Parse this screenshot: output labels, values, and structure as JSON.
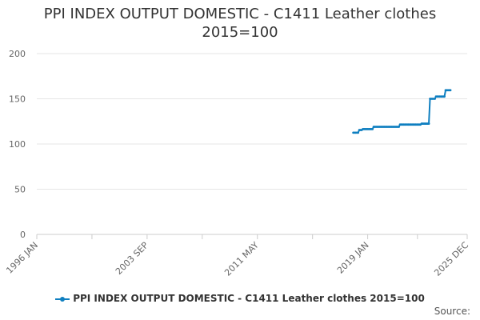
{
  "header": {
    "title_line1": "PPI INDEX OUTPUT DOMESTIC - C1411 Leather clothes",
    "title_line2": "2015=100"
  },
  "legend": {
    "label": "PPI INDEX OUTPUT DOMESTIC - C1411 Leather clothes 2015=100"
  },
  "footer": {
    "source_label": "Source:"
  },
  "colors": {
    "series": "#0f7fc0",
    "grid": "#e6e6e6",
    "axis": "#cccccc",
    "text": "#333333"
  },
  "chart_data": {
    "type": "line",
    "title": "PPI INDEX OUTPUT DOMESTIC - C1411 Leather clothes 2015=100",
    "xlabel": "",
    "ylabel": "",
    "xlim": [
      "1996-01",
      "2025-12"
    ],
    "ylim": [
      0,
      200
    ],
    "yticks": [
      0,
      50,
      100,
      150,
      200
    ],
    "xtick_labels": [
      {
        "date": "1996-01",
        "label": "1996 JAN"
      },
      {
        "date": "2003-09",
        "label": "2003 SEP"
      },
      {
        "date": "2011-05",
        "label": "2011 MAY"
      },
      {
        "date": "2019-01",
        "label": "2019 JAN"
      },
      {
        "date": "2025-12",
        "label": "2025 DEC"
      }
    ],
    "grid": true,
    "legend_position": "bottom",
    "series": [
      {
        "name": "PPI INDEX OUTPUT DOMESTIC - C1411 Leather clothes 2015=100",
        "points": [
          [
            "2018-01",
            112.5
          ],
          [
            "2018-02",
            112.5
          ],
          [
            "2018-03",
            112.5
          ],
          [
            "2018-04",
            112.5
          ],
          [
            "2018-05",
            112.5
          ],
          [
            "2018-06",
            115.5
          ],
          [
            "2018-07",
            115.5
          ],
          [
            "2018-08",
            115.5
          ],
          [
            "2018-09",
            116.5
          ],
          [
            "2018-10",
            116.5
          ],
          [
            "2018-11",
            116.5
          ],
          [
            "2018-12",
            116.5
          ],
          [
            "2019-01",
            116.5
          ],
          [
            "2019-02",
            116.5
          ],
          [
            "2019-03",
            116.5
          ],
          [
            "2019-04",
            116.5
          ],
          [
            "2019-05",
            116.5
          ],
          [
            "2019-06",
            119.0
          ],
          [
            "2019-07",
            119.0
          ],
          [
            "2019-08",
            119.0
          ],
          [
            "2019-09",
            119.0
          ],
          [
            "2019-10",
            119.0
          ],
          [
            "2019-11",
            119.0
          ],
          [
            "2019-12",
            119.0
          ],
          [
            "2020-01",
            119.0
          ],
          [
            "2020-02",
            119.0
          ],
          [
            "2020-03",
            119.0
          ],
          [
            "2020-04",
            119.0
          ],
          [
            "2020-05",
            119.0
          ],
          [
            "2020-06",
            119.0
          ],
          [
            "2020-07",
            119.0
          ],
          [
            "2020-08",
            119.0
          ],
          [
            "2020-09",
            119.0
          ],
          [
            "2020-10",
            119.0
          ],
          [
            "2020-11",
            119.0
          ],
          [
            "2020-12",
            119.0
          ],
          [
            "2021-01",
            119.0
          ],
          [
            "2021-02",
            119.0
          ],
          [
            "2021-03",
            119.0
          ],
          [
            "2021-04",
            121.5
          ],
          [
            "2021-05",
            121.5
          ],
          [
            "2021-06",
            121.5
          ],
          [
            "2021-07",
            121.5
          ],
          [
            "2021-08",
            121.5
          ],
          [
            "2021-09",
            121.5
          ],
          [
            "2021-10",
            121.5
          ],
          [
            "2021-11",
            121.5
          ],
          [
            "2021-12",
            121.5
          ],
          [
            "2022-01",
            121.5
          ],
          [
            "2022-02",
            121.5
          ],
          [
            "2022-03",
            121.5
          ],
          [
            "2022-04",
            121.5
          ],
          [
            "2022-05",
            121.5
          ],
          [
            "2022-06",
            121.5
          ],
          [
            "2022-07",
            121.5
          ],
          [
            "2022-08",
            121.5
          ],
          [
            "2022-09",
            121.5
          ],
          [
            "2022-10",
            122.5
          ],
          [
            "2022-11",
            122.5
          ],
          [
            "2022-12",
            122.5
          ],
          [
            "2023-01",
            122.5
          ],
          [
            "2023-02",
            122.5
          ],
          [
            "2023-03",
            122.5
          ],
          [
            "2023-04",
            122.5
          ],
          [
            "2023-05",
            150.0
          ],
          [
            "2023-06",
            150.0
          ],
          [
            "2023-07",
            150.0
          ],
          [
            "2023-08",
            150.0
          ],
          [
            "2023-09",
            150.0
          ],
          [
            "2023-10",
            152.5
          ],
          [
            "2023-11",
            152.5
          ],
          [
            "2023-12",
            152.5
          ],
          [
            "2024-01",
            152.5
          ],
          [
            "2024-02",
            152.5
          ],
          [
            "2024-03",
            152.5
          ],
          [
            "2024-04",
            152.5
          ],
          [
            "2024-05",
            152.5
          ],
          [
            "2024-06",
            159.5
          ],
          [
            "2024-07",
            159.5
          ],
          [
            "2024-08",
            159.5
          ],
          [
            "2024-09",
            159.5
          ],
          [
            "2024-10",
            159.5
          ]
        ]
      }
    ]
  }
}
